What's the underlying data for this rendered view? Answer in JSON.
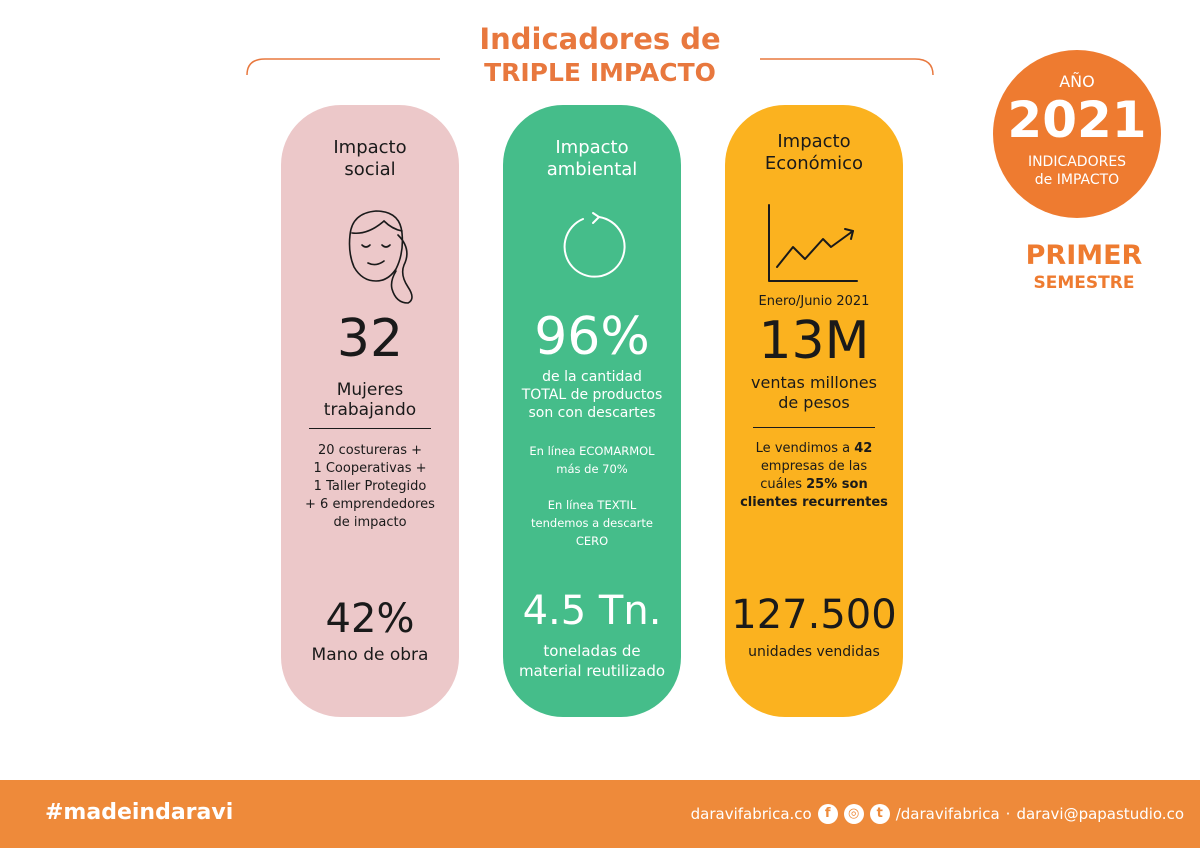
{
  "header": {
    "title_line1": "Indicadores de",
    "title_line2": "TRIPLE IMPACTO"
  },
  "badge": {
    "label": "AÑO",
    "year": "2021",
    "subtitle_line1": "INDICADORES",
    "subtitle_line2": "de IMPACTO"
  },
  "semester": {
    "line1": "PRIMER",
    "line2": "SEMESTRE"
  },
  "social": {
    "heading_line1": "Impacto",
    "heading_line2": "social",
    "icon": "woman-face-icon",
    "big_value": "32",
    "label_line1": "Mujeres",
    "label_line2": "trabajando",
    "details": [
      "20 costureras +",
      "1 Cooperativas +",
      "1 Taller Protegido",
      "+ 6 emprendedores",
      "de impacto"
    ],
    "bottom_value": "42%",
    "bottom_label": "Mano de obra",
    "color": "#ecc8c9"
  },
  "ambiental": {
    "heading_line1": "Impacto",
    "heading_line2": "ambiental",
    "icon": "recycle-cycle-icon",
    "big_value": "96%",
    "label_lines": [
      "de la cantidad",
      "TOTAL de productos",
      "son con descartes"
    ],
    "details": [
      "En línea ECOMARMOL",
      "más de 70%",
      "",
      "En línea TEXTIL",
      "tendemos a descarte",
      "CERO"
    ],
    "bottom_value": "4.5 Tn.",
    "bottom_label_line1": "toneladas de",
    "bottom_label_line2": "material reutilizado",
    "color": "#45bd8a"
  },
  "economico": {
    "heading_line1": "Impacto",
    "heading_line2": "Económico",
    "icon": "growth-chart-icon",
    "period": "Enero/Junio 2021",
    "big_value": "13M",
    "label_line1": "ventas millones",
    "label_line2": "de pesos",
    "detail_line1_a": "Le vendimos a ",
    "detail_line1_b": "42",
    "detail_line2": "empresas de las",
    "detail_line3_a": "cuáles ",
    "detail_line3_b": "25% son",
    "detail_line4": "clientes recurrentes",
    "bottom_value": "127.500",
    "bottom_label": "unidades vendidas",
    "color": "#fbb21f"
  },
  "footer": {
    "hashtag": "#madeindaravi",
    "website": "daravifabrica.co",
    "handle": "/daravifabrica",
    "separator": "·",
    "email": "daravi@papastudio.co",
    "color": "#ee8a3a"
  }
}
